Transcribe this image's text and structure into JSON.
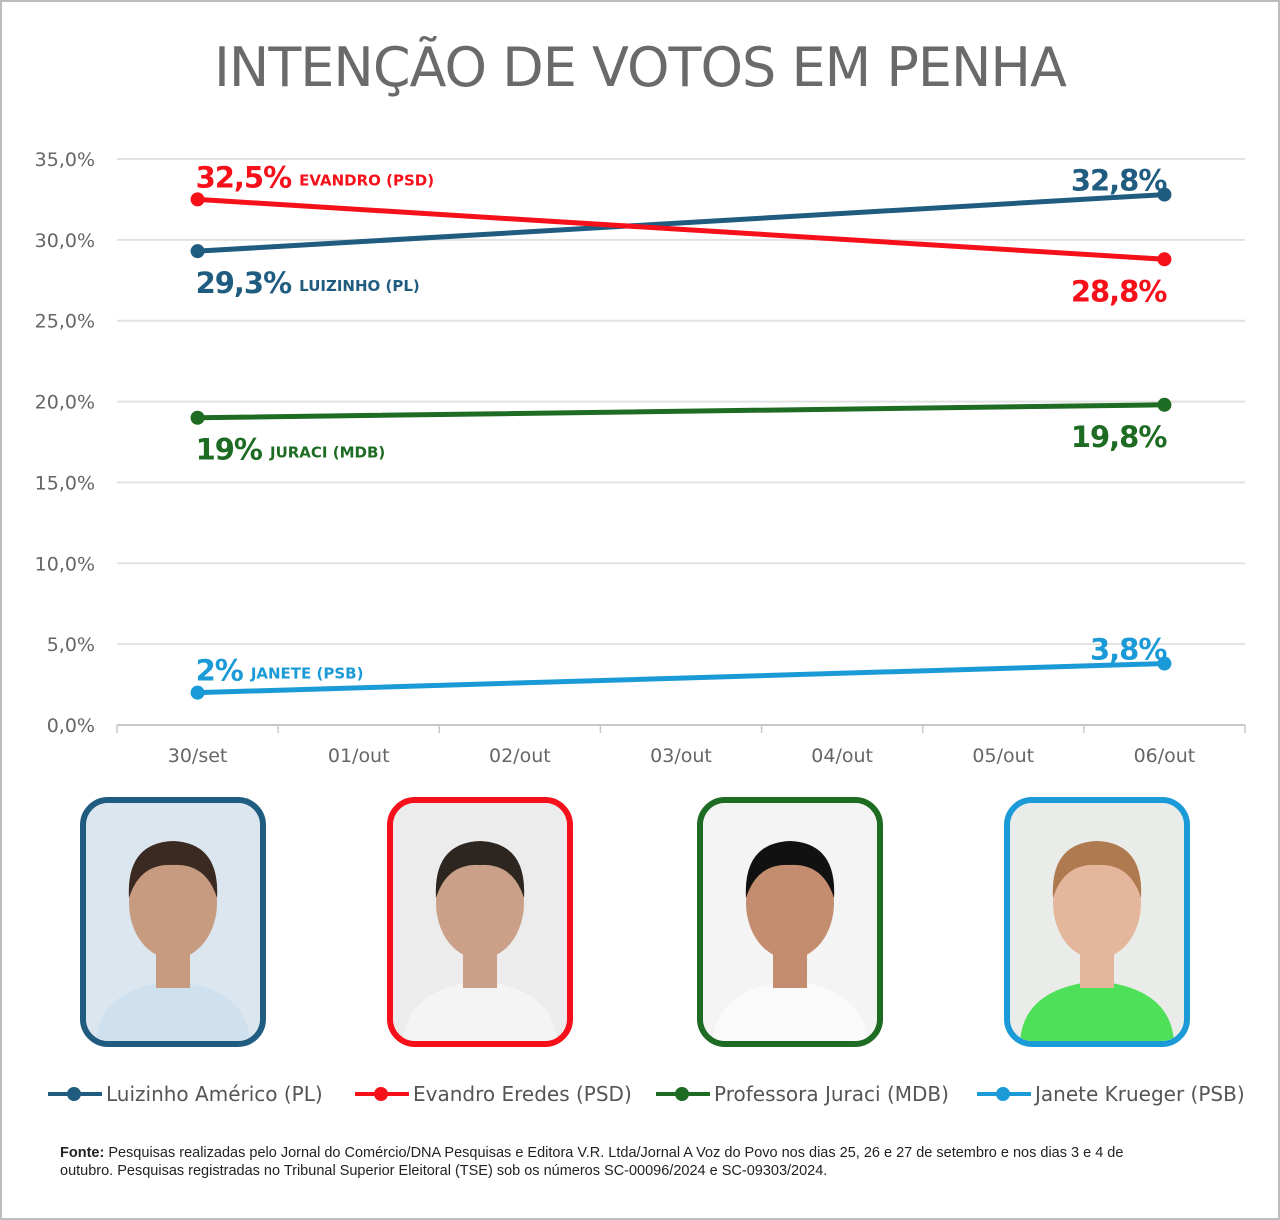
{
  "chart_data": {
    "type": "line",
    "title": "INTENÇÃO DE VOTOS EM PENHA",
    "categories": [
      "30/set",
      "01/out",
      "02/out",
      "03/out",
      "04/out",
      "05/out",
      "06/out"
    ],
    "yticks": [
      "0,0%",
      "5,0%",
      "10,0%",
      "15,0%",
      "20,0%",
      "25,0%",
      "30,0%",
      "35,0%"
    ],
    "ylim": [
      0,
      35
    ],
    "grid": true,
    "legend_position": "bottom",
    "series": [
      {
        "name": "Luizinho Américo (PL)",
        "color": "#1f5c80",
        "values": [
          29.3,
          null,
          null,
          null,
          null,
          null,
          32.8
        ],
        "labels": [
          "29,3%",
          "32,8%"
        ],
        "tag": "LUIZINHO (PL)"
      },
      {
        "name": "Evandro Eredes (PSD)",
        "color": "#f5101a",
        "values": [
          32.5,
          null,
          null,
          null,
          null,
          null,
          28.8
        ],
        "labels": [
          "32,5%",
          "28,8%"
        ],
        "tag": "EVANDRO (PSD)"
      },
      {
        "name": "Professora Juraci (MDB)",
        "color": "#1e6b23",
        "values": [
          19,
          null,
          null,
          null,
          null,
          null,
          19.8
        ],
        "labels": [
          "19%",
          "19,8%"
        ],
        "tag": "JURACI (MDB)"
      },
      {
        "name": "Janete Krueger (PSB)",
        "color": "#1a9ad6",
        "values": [
          2,
          null,
          null,
          null,
          null,
          null,
          3.8
        ],
        "labels": [
          "2%",
          "3,8%"
        ],
        "tag": "JANETE (PSB)"
      }
    ]
  },
  "source": {
    "label": "Fonte:",
    "text": " Pesquisas realizadas pelo Jornal do Comércio/DNA Pesquisas e Editora V.R. Ltda/Jornal A Voz do Povo nos dias 25, 26 e 27 de setembro e nos dias 3 e 4 de outubro. Pesquisas registradas no Tribunal Superior Eleitoral (TSE) sob os números SC-00096/2024 e SC-09303/2024."
  }
}
